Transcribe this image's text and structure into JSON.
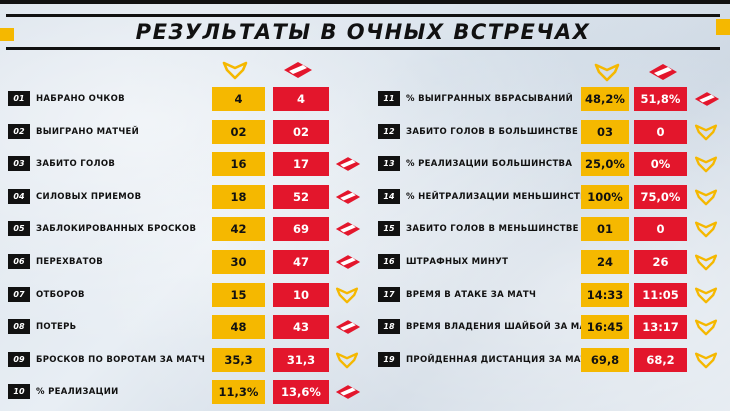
{
  "title": "РЕЗУЛЬТАТЫ В ОЧНЫХ ВСТРЕЧАХ",
  "colors": {
    "team_a": "#f5b800",
    "team_b": "#e3162c",
    "dark": "#111111"
  },
  "team_a_icon": "yellow-chevron-logo-icon",
  "team_b_icon": "spartak-diamond-logo-icon",
  "left_stats": [
    {
      "num": "01",
      "label": "НАБРАНО ОЧКОВ",
      "a": "4",
      "b": "4",
      "winner": ""
    },
    {
      "num": "02",
      "label": "ВЫИГРАНО МАТЧЕЙ",
      "a": "02",
      "b": "02",
      "winner": ""
    },
    {
      "num": "03",
      "label": "ЗАБИТО ГОЛОВ",
      "a": "16",
      "b": "17",
      "winner": "b"
    },
    {
      "num": "04",
      "label": "СИЛОВЫХ ПРИЕМОВ",
      "a": "18",
      "b": "52",
      "winner": "b"
    },
    {
      "num": "05",
      "label": "ЗАБЛОКИРОВАННЫХ БРОСКОВ",
      "a": "42",
      "b": "69",
      "winner": "b"
    },
    {
      "num": "06",
      "label": "ПЕРЕХВАТОВ",
      "a": "30",
      "b": "47",
      "winner": "b"
    },
    {
      "num": "07",
      "label": "ОТБОРОВ",
      "a": "15",
      "b": "10",
      "winner": "a"
    },
    {
      "num": "08",
      "label": "ПОТЕРЬ",
      "a": "48",
      "b": "43",
      "winner": "b"
    },
    {
      "num": "09",
      "label": "БРОСКОВ ПО ВОРОТАМ ЗА МАТЧ",
      "a": "35,3",
      "b": "31,3",
      "winner": "a"
    },
    {
      "num": "10",
      "label": "% РЕАЛИЗАЦИИ",
      "a": "11,3%",
      "b": "13,6%",
      "winner": "b"
    }
  ],
  "right_stats": [
    {
      "num": "11",
      "label": "% ВЫИГРАННЫХ ВБРАСЫВАНИЙ",
      "a": "48,2%",
      "b": "51,8%",
      "winner": "b"
    },
    {
      "num": "12",
      "label": "ЗАБИТО ГОЛОВ В БОЛЬШИНСТВЕ",
      "a": "03",
      "b": "0",
      "winner": "a"
    },
    {
      "num": "13",
      "label": "% РЕАЛИЗАЦИИ БОЛЬШИНСТВА",
      "a": "25,0%",
      "b": "0%",
      "winner": "a"
    },
    {
      "num": "14",
      "label": "% НЕЙТРАЛИЗАЦИИ МЕНЬШИНСТВА",
      "a": "100%",
      "b": "75,0%",
      "winner": "a"
    },
    {
      "num": "15",
      "label": "ЗАБИТО ГОЛОВ В МЕНЬШИНСТВЕ",
      "a": "01",
      "b": "0",
      "winner": "a"
    },
    {
      "num": "16",
      "label": "ШТРАФНЫХ МИНУТ",
      "a": "24",
      "b": "26",
      "winner": "a"
    },
    {
      "num": "17",
      "label": "ВРЕМЯ В АТАКЕ ЗА МАТЧ",
      "a": "14:33",
      "b": "11:05",
      "winner": "a"
    },
    {
      "num": "18",
      "label": "ВРЕМЯ ВЛАДЕНИЯ ШАЙБОЙ ЗА МАТЧ",
      "a": "16:45",
      "b": "13:17",
      "winner": "a"
    },
    {
      "num": "19",
      "label": "ПРОЙДЕННАЯ ДИСТАНЦИЯ ЗА МАТЧ",
      "a": "69,8",
      "b": "68,2",
      "winner": "a"
    }
  ]
}
